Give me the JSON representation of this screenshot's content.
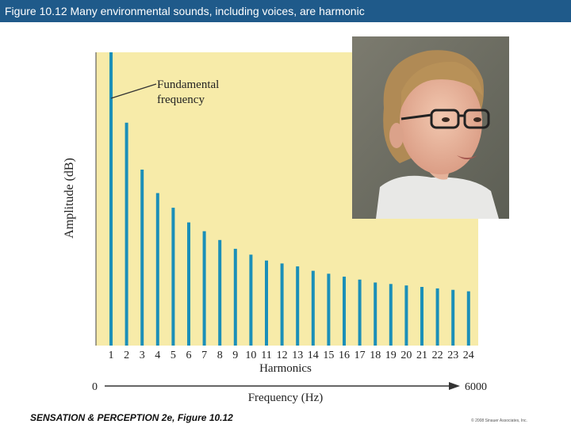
{
  "header": {
    "title": "Figure 10.12  Many environmental sounds, including voices, are harmonic"
  },
  "footer": {
    "book": "SENSATION & PERCEPTION 2e, Figure 10.12",
    "copyright": "© 2008 Sinauer Associates, Inc."
  },
  "colors": {
    "background": "#f7eba9",
    "bar": "#1b8fb8",
    "header": "#1f5a8a"
  },
  "photo": {
    "icon": "person-photo"
  },
  "chart_data": {
    "type": "bar",
    "ylabel": "Amplitude (dB)",
    "xlabel": "Harmonics",
    "categories": [
      "1",
      "2",
      "3",
      "4",
      "5",
      "6",
      "7",
      "8",
      "9",
      "10",
      "11",
      "12",
      "13",
      "14",
      "15",
      "16",
      "17",
      "18",
      "19",
      "20",
      "21",
      "22",
      "23",
      "24"
    ],
    "values": [
      100,
      76,
      60,
      52,
      47,
      42,
      39,
      36,
      33,
      31,
      29,
      28,
      27,
      25.5,
      24.5,
      23.5,
      22.5,
      21.5,
      21,
      20.5,
      20,
      19.5,
      19,
      18.5
    ],
    "ylim": [
      0,
      100
    ],
    "annotation": {
      "text": [
        "Fundamental",
        "frequency"
      ],
      "target_category": "1"
    },
    "frequency_axis": {
      "label": "Frequency (Hz)",
      "start": "0",
      "end": "6000"
    },
    "grid": false,
    "legend": "none"
  }
}
